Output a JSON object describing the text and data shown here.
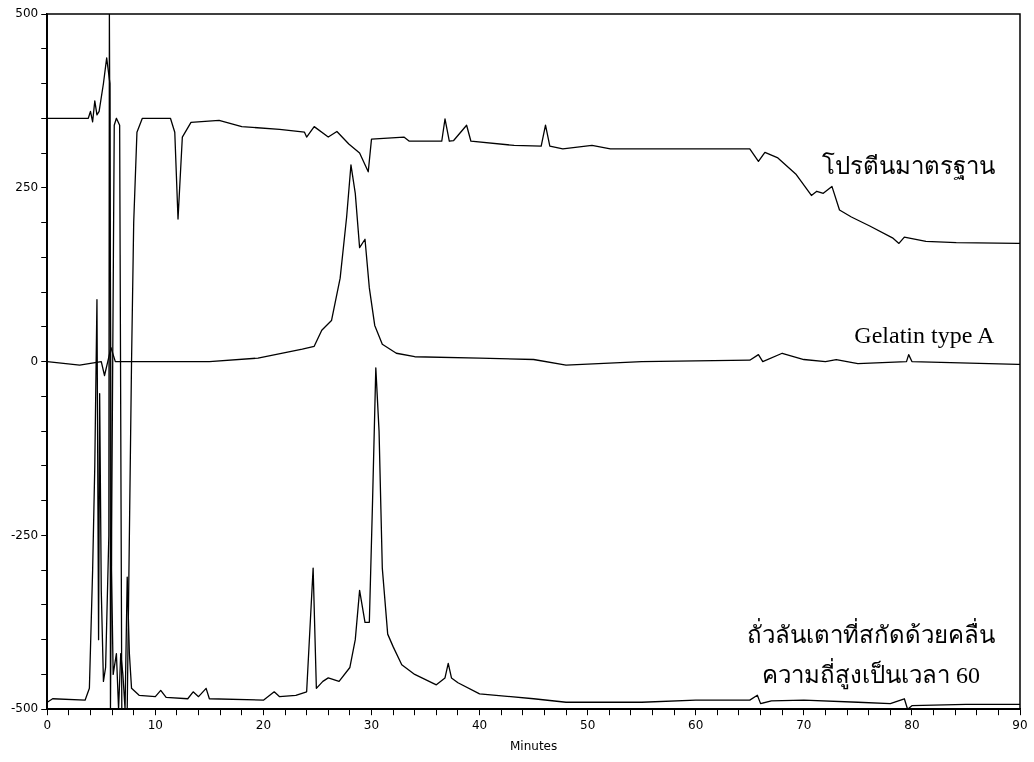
{
  "chart_data": {
    "type": "line",
    "xlabel": "Minutes",
    "xlim": [
      0,
      90
    ],
    "xticks": [
      0,
      {
        "value": 2,
        "label": null
      },
      {
        "value": 4,
        "label": null
      },
      {
        "value": 6,
        "label": null
      },
      {
        "value": 8,
        "label": null
      },
      10,
      {
        "value": 12,
        "label": null
      },
      {
        "value": 14,
        "label": null
      },
      {
        "value": 16,
        "label": null
      },
      {
        "value": 18,
        "label": null
      },
      20,
      {
        "value": 22,
        "label": null
      },
      {
        "value": 24,
        "label": null
      },
      {
        "value": 26,
        "label": null
      },
      {
        "value": 28,
        "label": null
      },
      30,
      {
        "value": 32,
        "label": null
      },
      {
        "value": 34,
        "label": null
      },
      {
        "value": 36,
        "label": null
      },
      {
        "value": 38,
        "label": null
      },
      40,
      {
        "value": 42,
        "label": null
      },
      {
        "value": 44,
        "label": null
      },
      {
        "value": 46,
        "label": null
      },
      {
        "value": 48,
        "label": null
      },
      50,
      {
        "value": 52,
        "label": null
      },
      {
        "value": 54,
        "label": null
      },
      {
        "value": 56,
        "label": null
      },
      {
        "value": 58,
        "label": null
      },
      60,
      {
        "value": 62,
        "label": null
      },
      {
        "value": 64,
        "label": null
      },
      {
        "value": 66,
        "label": null
      },
      {
        "value": 68,
        "label": null
      },
      70,
      {
        "value": 72,
        "label": null
      },
      {
        "value": 74,
        "label": null
      },
      {
        "value": 76,
        "label": null
      },
      {
        "value": 78,
        "label": null
      },
      80,
      {
        "value": 82,
        "label": null
      },
      {
        "value": 84,
        "label": null
      },
      {
        "value": 86,
        "label": null
      },
      {
        "value": 88,
        "label": null
      },
      90
    ],
    "ylim": [
      -500,
      500
    ],
    "yticks": [
      -500,
      {
        "value": -450,
        "label": null
      },
      {
        "value": -400,
        "label": null
      },
      {
        "value": -350,
        "label": null
      },
      {
        "value": -300,
        "label": null
      },
      -250,
      {
        "value": -200,
        "label": null
      },
      {
        "value": -150,
        "label": null
      },
      {
        "value": -100,
        "label": null
      },
      {
        "value": -50,
        "label": null
      },
      0,
      {
        "value": 50,
        "label": null
      },
      {
        "value": 100,
        "label": null
      },
      {
        "value": 150,
        "label": null
      },
      {
        "value": 200,
        "label": null
      },
      250,
      {
        "value": 300,
        "label": null
      },
      {
        "value": 350,
        "label": null
      },
      {
        "value": 400,
        "label": null
      },
      {
        "value": 450,
        "label": null
      },
      500
    ],
    "grid": false,
    "legend": false,
    "marker": "none",
    "line_style": "solid",
    "series": [
      {
        "name": "โปรตีนมาตรฐาน",
        "color": "#000000",
        "x": [
          0,
          3.8,
          4.0,
          4.2,
          4.4,
          4.6,
          4.8,
          5.2,
          5.5,
          5.8,
          5.85,
          6.2,
          6.4,
          6.7,
          6.9,
          7.4,
          7.8,
          8.0,
          8.3,
          8.8,
          11.4,
          11.8,
          12.1,
          12.5,
          13.3,
          15.9,
          18,
          21.5,
          23.8,
          24.0,
          24.7,
          26,
          26.8,
          27.9,
          28.9,
          29.7,
          30.0,
          33,
          33.5,
          36.5,
          36.8,
          37.2,
          37.6,
          38.8,
          39.2,
          43.2,
          45.7,
          46.1,
          46.5,
          47.7,
          50.4,
          52.1,
          65,
          65.8,
          66.4,
          67.6,
          69.3,
          70.7,
          71.2,
          71.8,
          72.6,
          73.3,
          74.4,
          76.1,
          78.2,
          78.8,
          79.3,
          81.3,
          84.1,
          90
        ],
        "values": [
          350,
          350,
          360,
          345,
          375,
          355,
          360,
          400,
          437,
          400,
          -500,
          340,
          350,
          340,
          -500,
          -500,
          0,
          200,
          330,
          350,
          350,
          330,
          205,
          323,
          344,
          347,
          338,
          334,
          330,
          323,
          338,
          323,
          331,
          313,
          300,
          273,
          320,
          323,
          317,
          317,
          349,
          317,
          318,
          340,
          317,
          311,
          310,
          340,
          310,
          306,
          311,
          306,
          306,
          288,
          301,
          293,
          269,
          239,
          245,
          242,
          252,
          218,
          208,
          195,
          178,
          170,
          179,
          173,
          171,
          170
        ]
      },
      {
        "name": "Gelatin type A",
        "color": "#000000",
        "x": [
          0,
          3,
          5.0,
          5.3,
          5.6,
          5.9,
          6.3,
          10,
          15,
          19.5,
          23.6,
          24.7,
          25.4,
          26.3,
          27.1,
          27.7,
          28.1,
          28.5,
          28.9,
          29.4,
          29.8,
          30.3,
          31.0,
          32.3,
          34,
          40,
          45,
          48,
          55,
          65,
          65.8,
          66.2,
          68,
          70,
          72,
          73,
          75,
          79.5,
          79.7,
          80,
          90
        ],
        "values": [
          0,
          -5,
          0,
          -20,
          0,
          20,
          0,
          0,
          0,
          5,
          18,
          22,
          45,
          59,
          120,
          208,
          283,
          242,
          164,
          176,
          106,
          52,
          25,
          12,
          7,
          5,
          3,
          -5,
          0,
          2,
          10,
          0,
          12,
          3,
          0,
          3,
          -3,
          0,
          10,
          0,
          -4
        ]
      },
      {
        "name": "ถั่วลันเตาที่สกัดด้วยคลื่นความถี่สูงเป็นเวลา 60",
        "color": "#000000",
        "x": [
          0,
          0.5,
          3.5,
          3.9,
          4.2,
          4.4,
          4.6,
          4.75,
          4.85,
          5.0,
          5.2,
          5.4,
          5.7,
          5.75,
          5.95,
          6.1,
          6.4,
          6.6,
          6.8,
          7.0,
          7.2,
          7.4,
          7.6,
          7.8,
          8.5,
          10,
          10.5,
          11,
          13,
          13.5,
          14,
          14.7,
          15,
          20,
          21,
          21.5,
          23,
          24,
          24.6,
          24.9,
          25.5,
          26,
          27,
          28,
          28.5,
          28.9,
          29.4,
          29.8,
          30.1,
          30.4,
          30.7,
          31.0,
          31.5,
          32,
          32.8,
          34,
          36,
          36.8,
          37.1,
          37.4,
          38,
          40,
          45,
          48,
          55,
          60,
          65,
          65.7,
          66,
          67,
          70,
          75,
          78,
          79.3,
          79.6,
          80,
          85,
          90
        ],
        "values": [
          -490,
          -485,
          -487,
          -470,
          -300,
          -150,
          89,
          -400,
          -46,
          -330,
          -460,
          -440,
          -250,
          500,
          -300,
          -450,
          -420,
          -500,
          -420,
          -450,
          -500,
          -310,
          -420,
          -470,
          -480,
          -482,
          -473,
          -483,
          -485,
          -475,
          -482,
          -470,
          -485,
          -487,
          -475,
          -482,
          -480,
          -475,
          -297,
          -470,
          -460,
          -455,
          -460,
          -440,
          -400,
          -329,
          -375,
          -375,
          -200,
          -9,
          -100,
          -297,
          -392,
          -410,
          -436,
          -450,
          -465,
          -455,
          -434,
          -455,
          -462,
          -478,
          -485,
          -490,
          -490,
          -487,
          -487,
          -480,
          -492,
          -488,
          -487,
          -490,
          -492,
          -485,
          -500,
          -495,
          -493,
          -493
        ]
      }
    ]
  }
}
